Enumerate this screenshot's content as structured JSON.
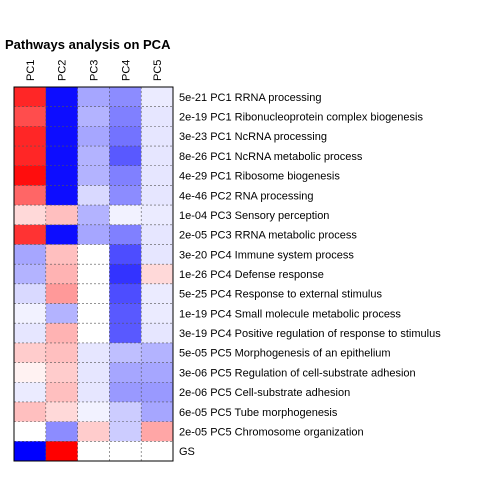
{
  "chart_data": {
    "type": "heatmap",
    "title": "Pathways analysis on PCA",
    "columns": [
      "PC1",
      "PC2",
      "PC3",
      "PC4",
      "PC5"
    ],
    "rows": [
      "5e-21 PC1 RRNA processing",
      "2e-19 PC1 Ribonucleoprotein complex biogenesis",
      "3e-23 PC1 NcRNA processing",
      "8e-26 PC1 NcRNA metabolic process",
      "4e-29 PC1 Ribosome biogenesis",
      "4e-46 PC2 RNA processing",
      "1e-04 PC3 Sensory perception",
      "2e-05 PC3 RRNA metabolic process",
      "3e-20 PC4 Immune system process",
      "1e-26 PC4 Defense response",
      "5e-25 PC4 Response to external stimulus",
      "1e-19 PC4 Small molecule metabolic process",
      "3e-19 PC4 Positive regulation of response to stimulus",
      "5e-05 PC5 Morphogenesis of an epithelium",
      "3e-06 PC5 Regulation of cell-substrate adhesion",
      "2e-06 PC5 Cell-substrate adhesion",
      "6e-05 PC5 Tube morphogenesis",
      "2e-05 PC5 Chromosome organization",
      "GS"
    ],
    "values": [
      [
        0.85,
        -0.95,
        -0.35,
        -0.45,
        -0.08
      ],
      [
        0.7,
        -0.95,
        -0.3,
        -0.5,
        -0.1
      ],
      [
        0.85,
        -0.95,
        -0.35,
        -0.55,
        -0.1
      ],
      [
        0.85,
        -0.95,
        -0.3,
        -0.65,
        -0.1
      ],
      [
        0.95,
        -0.95,
        -0.3,
        -0.5,
        -0.1
      ],
      [
        0.6,
        -0.95,
        -0.15,
        -0.45,
        -0.1
      ],
      [
        0.15,
        0.25,
        -0.3,
        -0.05,
        -0.08
      ],
      [
        0.8,
        -0.95,
        -0.35,
        -0.5,
        -0.1
      ],
      [
        -0.35,
        0.25,
        0.0,
        -0.7,
        -0.1
      ],
      [
        -0.3,
        0.3,
        0.0,
        -0.8,
        0.15
      ],
      [
        -0.15,
        0.4,
        0.0,
        -0.7,
        -0.08
      ],
      [
        -0.05,
        -0.3,
        0.0,
        -0.65,
        -0.08
      ],
      [
        -0.1,
        0.3,
        0.0,
        -0.65,
        -0.1
      ],
      [
        0.2,
        0.25,
        -0.1,
        -0.25,
        -0.3
      ],
      [
        0.05,
        0.2,
        -0.1,
        -0.35,
        -0.35
      ],
      [
        -0.08,
        0.25,
        -0.1,
        -0.4,
        -0.4
      ],
      [
        0.25,
        0.15,
        -0.05,
        -0.2,
        -0.35
      ],
      [
        0.0,
        -0.45,
        0.2,
        -0.2,
        0.35
      ],
      [
        -1.0,
        1.0,
        0.0,
        0.0,
        0.0
      ]
    ],
    "color_scale": {
      "negative": "#0000ff",
      "zero": "#ffffff",
      "positive": "#ff0000",
      "range": [
        -1,
        1
      ]
    },
    "grid": true,
    "legend": "none"
  }
}
